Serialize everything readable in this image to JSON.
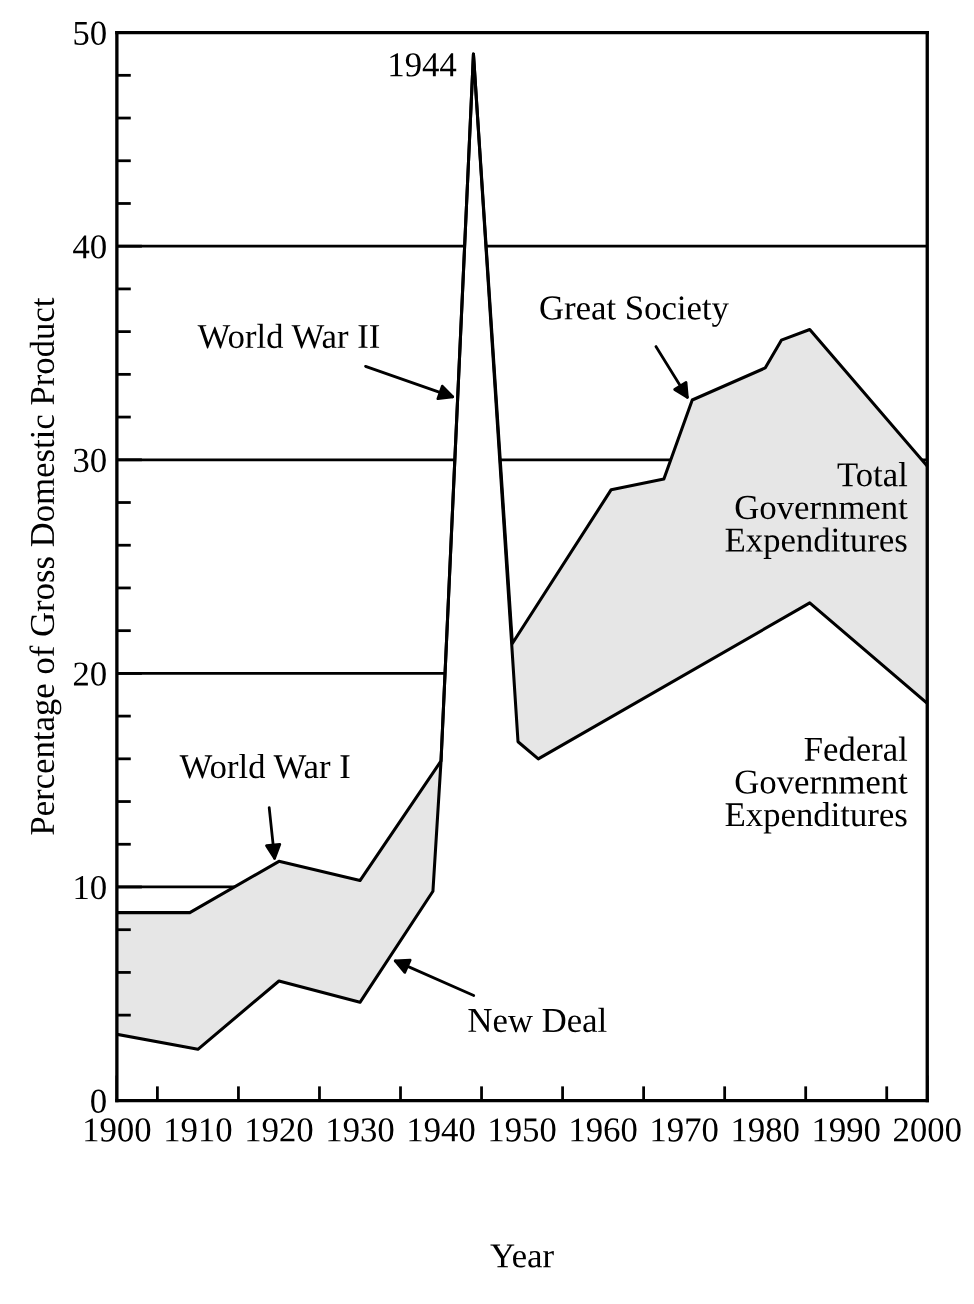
{
  "chart_data": {
    "type": "area",
    "xlabel": "Year",
    "ylabel": "Percentage of Gross Domestic Product",
    "series": [
      {
        "name": "Total Government Expenditures",
        "type": "area",
        "color": "#e6e6e6",
        "x": [
          1900,
          1909,
          1920,
          1930,
          1940,
          1944,
          1948.8,
          1961,
          1967.5,
          1971,
          1980,
          1982,
          1985.5,
          2000
        ],
        "values": [
          8.8,
          8.8,
          11.2,
          10.3,
          15.9,
          49.0,
          21.4,
          28.6,
          29.1,
          32.8,
          34.3,
          35.6,
          36.1,
          29.7
        ]
      },
      {
        "name": "Federal Government Expenditures",
        "type": "line",
        "color": "#000000",
        "x": [
          1900,
          1910,
          1920,
          1930,
          1939,
          1940,
          1944,
          1949.5,
          1952,
          1985.5,
          2000
        ],
        "values": [
          3.1,
          2.4,
          5.6,
          4.6,
          9.8,
          15.9,
          49.0,
          16.8,
          16.0,
          23.3,
          18.6
        ]
      }
    ],
    "xlim": [
      1900,
      2000
    ],
    "xticks": [
      1900,
      {
        "value": 1905,
        "label": null
      },
      1910,
      {
        "value": 1915,
        "label": null
      },
      1920,
      {
        "value": 1925,
        "label": null
      },
      1930,
      {
        "value": 1935,
        "label": null
      },
      1940,
      {
        "value": 1945,
        "label": null
      },
      1950,
      {
        "value": 1955,
        "label": null
      },
      1960,
      {
        "value": 1965,
        "label": null
      },
      1970,
      {
        "value": 1975,
        "label": null
      },
      1980,
      {
        "value": 1985,
        "label": null
      },
      1990,
      {
        "value": 1995,
        "label": null
      },
      2000
    ],
    "ylim": [
      0,
      50
    ],
    "yticks": [
      0,
      {
        "value": 2,
        "label": null
      },
      {
        "value": 4,
        "label": null
      },
      {
        "value": 6,
        "label": null
      },
      {
        "value": 8,
        "label": null
      },
      10,
      {
        "value": 12,
        "label": null
      },
      {
        "value": 14,
        "label": null
      },
      {
        "value": 16,
        "label": null
      },
      {
        "value": 18,
        "label": null
      },
      20,
      {
        "value": 22,
        "label": null
      },
      {
        "value": 24,
        "label": null
      },
      {
        "value": 26,
        "label": null
      },
      {
        "value": 28,
        "label": null
      },
      30,
      {
        "value": 32,
        "label": null
      },
      {
        "value": 34,
        "label": null
      },
      {
        "value": 36,
        "label": null
      },
      {
        "value": 38,
        "label": null
      },
      40,
      {
        "value": 42,
        "label": null
      },
      {
        "value": 44,
        "label": null
      },
      {
        "value": 46,
        "label": null
      },
      {
        "value": 48,
        "label": null
      },
      50
    ],
    "grid": "y",
    "legend": false,
    "marker": "none",
    "line_style": "solid",
    "annotations": [
      {
        "text": "1944",
        "x": 1944,
        "y": 49.0
      },
      {
        "text": "World War II",
        "x": 1941.8,
        "y": 32.9
      },
      {
        "text": "Great Society",
        "x": 1970.6,
        "y": 32.8
      },
      {
        "text": "World War I",
        "x": 1919.5,
        "y": 11.2
      },
      {
        "text": "New Deal",
        "x": 1934,
        "y": 6.6
      }
    ]
  }
}
